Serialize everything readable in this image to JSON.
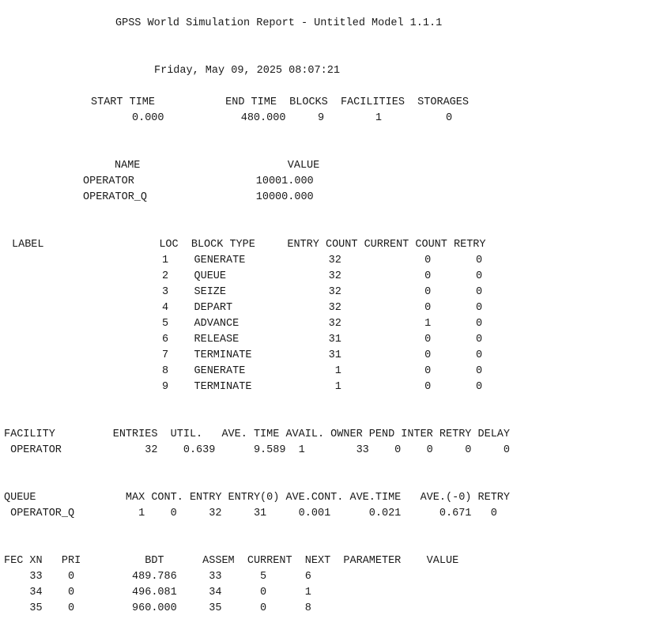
{
  "report": {
    "title": "GPSS World Simulation Report - Untitled Model 1.1.1",
    "timestamp": "Friday, May 09, 2025 08:07:21",
    "summary": {
      "header": "START TIME           END TIME  BLOCKS  FACILITIES  STORAGES",
      "values": "0.000            480.000     9        1          0"
    },
    "names": {
      "header": "NAME                       VALUE",
      "rows": [
        "OPERATOR                   10001.000",
        "OPERATOR_Q                 10000.000"
      ]
    },
    "blocks": {
      "header": "LABEL                  LOC  BLOCK TYPE     ENTRY COUNT CURRENT COUNT RETRY",
      "rows": [
        "1    GENERATE             32             0       0",
        "2    QUEUE                32             0       0",
        "3    SEIZE                32             0       0",
        "4    DEPART               32             0       0",
        "5    ADVANCE              32             1       0",
        "6    RELEASE              31             0       0",
        "7    TERMINATE            31             0       0",
        "8    GENERATE              1             0       0",
        "9    TERMINATE             1             0       0"
      ]
    },
    "facility": {
      "header": "FACILITY         ENTRIES  UTIL.   AVE. TIME AVAIL. OWNER PEND INTER RETRY DELAY",
      "rows": [
        " OPERATOR             32    0.639      9.589  1        33    0    0     0     0"
      ]
    },
    "queue": {
      "header": "QUEUE              MAX CONT. ENTRY ENTRY(0) AVE.CONT. AVE.TIME   AVE.(-0) RETRY",
      "rows": [
        " OPERATOR_Q          1    0     32     31     0.001      0.021      0.671   0"
      ]
    },
    "fec": {
      "header": "FEC XN   PRI          BDT      ASSEM  CURRENT  NEXT  PARAMETER    VALUE",
      "rows": [
        "    33    0         489.786     33      5      6",
        "    34    0         496.081     34      0      1",
        "    35    0         960.000     35      0      8"
      ]
    }
  }
}
